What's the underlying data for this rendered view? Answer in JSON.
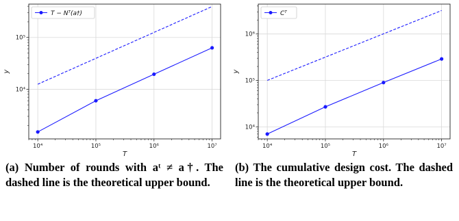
{
  "colors": {
    "series": "#1a1aff",
    "grid": "#d9d9d9",
    "axis": "#222222"
  },
  "captions": [
    {
      "tag": "(a)",
      "text": "Number of rounds with aᵗ ≠ a†. The dashed line is the theoretical upper bound."
    },
    {
      "tag": "(b)",
      "text": "The cumulative design cost. The dashed line is the theoretical upper bound."
    }
  ],
  "chart_data": [
    {
      "type": "line",
      "xlabel": "T",
      "ylabel": "y",
      "xscale": "log",
      "yscale": "log",
      "xlim": [
        7000,
        14000000
      ],
      "ylim": [
        1100,
        440000
      ],
      "grid": true,
      "legend_position": "top-left",
      "x_tick_labels": [
        "10⁴",
        "10⁵",
        "10⁶",
        "10⁷"
      ],
      "y_tick_labels": [
        "10⁴",
        "10⁵"
      ],
      "legend": [
        "T − Nᵀ(a†)"
      ],
      "series": [
        {
          "name": "T − Nᵀ(a†)",
          "style": "solid-marker",
          "x": [
            10000,
            100000,
            1000000,
            10000000
          ],
          "y": [
            1500,
            6000,
            19500,
            63000
          ]
        },
        {
          "style": "dashed",
          "x": [
            10000,
            10000000
          ],
          "y": [
            12500,
            395000
          ]
        }
      ]
    },
    {
      "type": "line",
      "xlabel": "T",
      "ylabel": "y",
      "xscale": "log",
      "yscale": "log",
      "xlim": [
        7000,
        14000000
      ],
      "ylim": [
        5500,
        4400000
      ],
      "grid": true,
      "legend_position": "top-left",
      "x_tick_labels": [
        "10⁴",
        "10⁵",
        "10⁶",
        "10⁷"
      ],
      "y_tick_labels": [
        "10⁴",
        "10⁵",
        "10⁶"
      ],
      "legend": [
        "Cᵀ"
      ],
      "series": [
        {
          "name": "Cᵀ",
          "style": "solid-marker",
          "x": [
            10000,
            100000,
            1000000,
            10000000
          ],
          "y": [
            7000,
            27000,
            90000,
            290000
          ]
        },
        {
          "style": "dashed",
          "x": [
            10000,
            10000000
          ],
          "y": [
            100000,
            3200000
          ]
        }
      ]
    }
  ]
}
